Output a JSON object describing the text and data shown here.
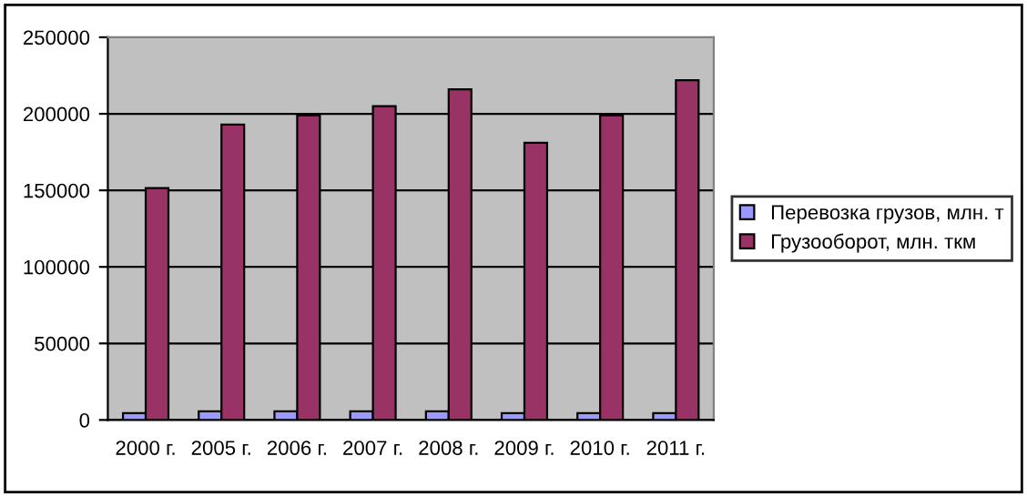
{
  "chart_data": {
    "type": "bar",
    "categories": [
      "2000 г.",
      "2005 г.",
      "2006 г.",
      "2007 г.",
      "2008 г.",
      "2009 г.",
      "2010 г.",
      "2011 г."
    ],
    "series": [
      {
        "name": "Перевозка грузов, млн. т",
        "color": "#9999ff",
        "values": [
          4500,
          5700,
          5700,
          5700,
          5700,
          4500,
          4500,
          4500
        ]
      },
      {
        "name": "Грузооборот, млн. ткм",
        "color": "#993366",
        "values": [
          151500,
          193000,
          199000,
          205000,
          216000,
          181000,
          199000,
          222000
        ]
      }
    ],
    "ylim": [
      0,
      250000
    ],
    "yticks": [
      0,
      50000,
      100000,
      150000,
      200000,
      250000
    ],
    "grid": "y",
    "legend": "right"
  }
}
